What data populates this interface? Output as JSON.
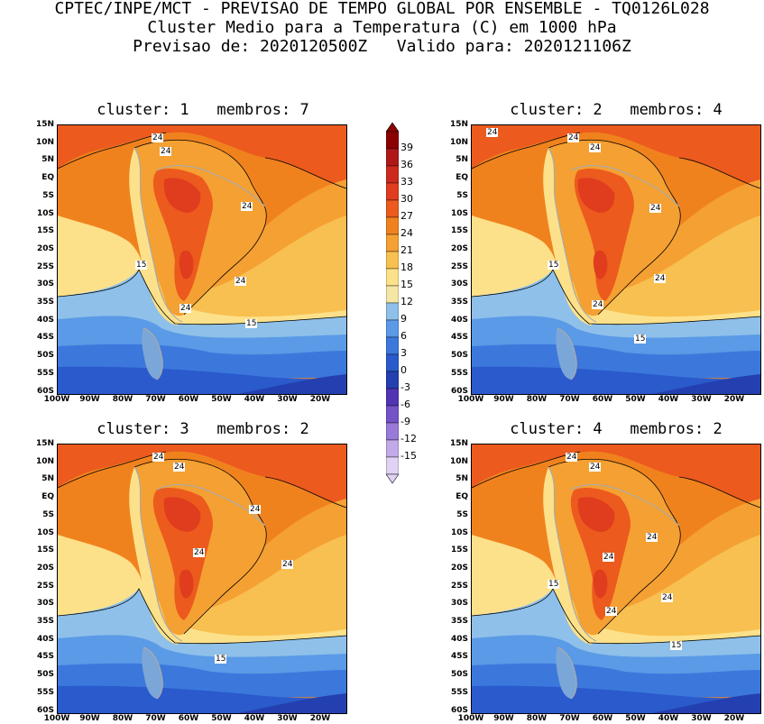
{
  "header": {
    "line1": "CPTEC/INPE/MCT - PREVISAO DE TEMPO GLOBAL POR ENSEMBLE - TQ0126L028",
    "line2": "Cluster Medio para a Temperatura (C) em 1000 hPa",
    "line3": "Previsao de: 2020120500Z   Valido para: 2020121106Z"
  },
  "axes": {
    "lat_labels": [
      "15N",
      "10N",
      "5N",
      "EQ",
      "5S",
      "10S",
      "15S",
      "20S",
      "25S",
      "30S",
      "35S",
      "40S",
      "45S",
      "50S",
      "55S",
      "60S"
    ],
    "lon_labels": [
      "100W",
      "90W",
      "80W",
      "70W",
      "60W",
      "50W",
      "40W",
      "30W",
      "20W"
    ]
  },
  "panels": [
    {
      "title": "cluster: 1   membros: 7",
      "contours": [
        "24",
        "24",
        "24",
        "24",
        "15",
        "24",
        "15"
      ]
    },
    {
      "title": "cluster: 2   membros: 4",
      "contours": [
        "24",
        "24",
        "24",
        "24",
        "15",
        "24",
        "24",
        "15"
      ]
    },
    {
      "title": "cluster: 3   membros: 2",
      "contours": [
        "24",
        "24",
        "24",
        "24",
        "24",
        "15"
      ]
    },
    {
      "title": "cluster: 4   membros: 2",
      "contours": [
        "24",
        "24",
        "24",
        "24",
        "15",
        "24",
        "24",
        "15"
      ]
    }
  ],
  "colorbar": {
    "labels": [
      "39",
      "36",
      "33",
      "30",
      "27",
      "24",
      "21",
      "18",
      "15",
      "12",
      "9",
      "6",
      "3",
      "0",
      "-3",
      "-6",
      "-9",
      "-12",
      "-15"
    ],
    "colors": [
      "#8b0000",
      "#b01818",
      "#cc2a1e",
      "#e03c1e",
      "#ec5a1e",
      "#f0821e",
      "#f5a032",
      "#f8c050",
      "#fde18a",
      "#f5e6a6",
      "#8ec0ea",
      "#5a9ae6",
      "#3c78dc",
      "#2a5acc",
      "#2440b0",
      "#5034b4",
      "#7452c8",
      "#9a7ad8",
      "#c2aae8",
      "#e0d2f4"
    ]
  }
}
